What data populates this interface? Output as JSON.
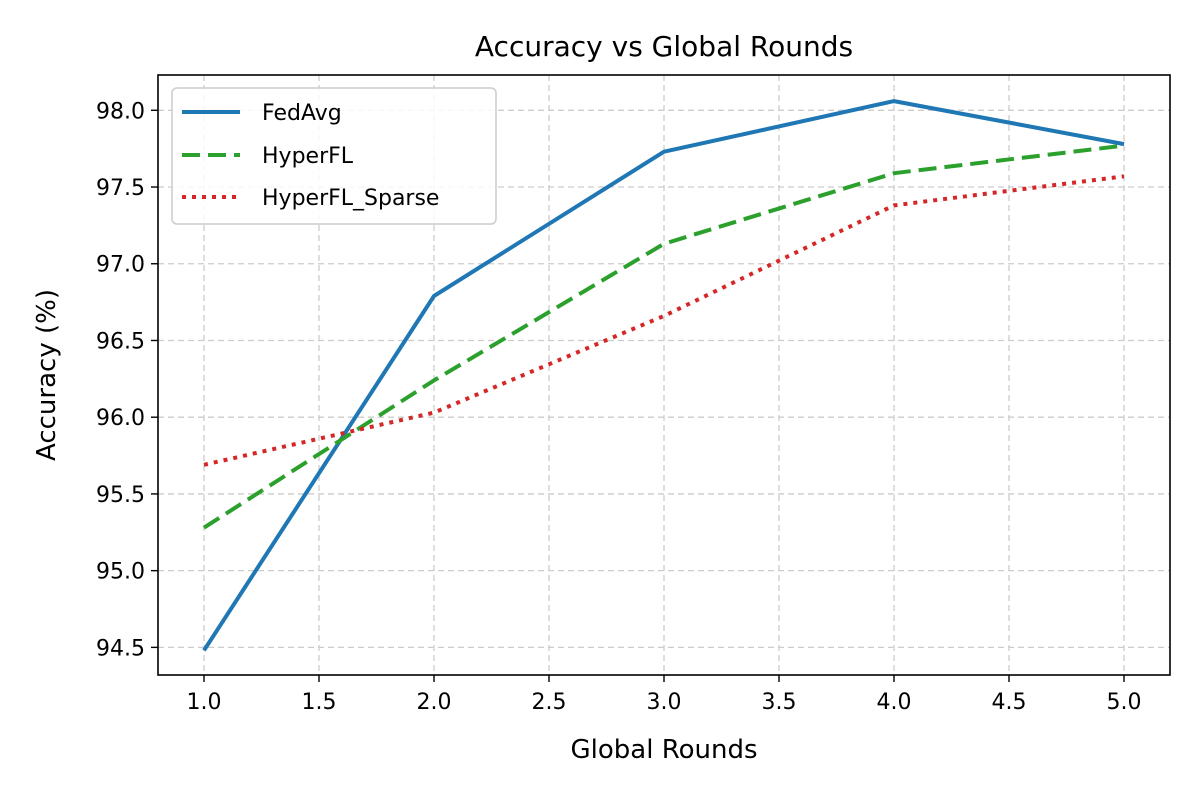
{
  "chart_data": {
    "type": "line",
    "title": "Accuracy vs Global Rounds",
    "xlabel": "Global Rounds",
    "ylabel": "Accuracy (%)",
    "x": [
      1,
      2,
      3,
      4,
      5
    ],
    "xlim": [
      0.8,
      5.2
    ],
    "ylim": [
      94.32,
      98.23
    ],
    "xticks": [
      1.0,
      1.5,
      2.0,
      2.5,
      3.0,
      3.5,
      4.0,
      4.5,
      5.0
    ],
    "xtick_labels": [
      "1.0",
      "1.5",
      "2.0",
      "2.5",
      "3.0",
      "3.5",
      "4.0",
      "4.5",
      "5.0"
    ],
    "yticks": [
      94.5,
      95.0,
      95.5,
      96.0,
      96.5,
      97.0,
      97.5,
      98.0
    ],
    "ytick_labels": [
      "94.5",
      "95.0",
      "95.5",
      "96.0",
      "96.5",
      "97.0",
      "97.5",
      "98.0"
    ],
    "grid": true,
    "legend_position": "top-left",
    "series": [
      {
        "name": "FedAvg",
        "values": [
          94.48,
          96.79,
          97.73,
          98.06,
          97.78
        ],
        "color": "#1f77b4",
        "style": "solid"
      },
      {
        "name": "HyperFL",
        "values": [
          95.28,
          96.24,
          97.13,
          97.59,
          97.77
        ],
        "color": "#2ca02c",
        "style": "dashed"
      },
      {
        "name": "HyperFL_Sparse",
        "values": [
          95.69,
          96.03,
          96.66,
          97.38,
          97.57
        ],
        "color": "#d62728",
        "style": "dotted"
      }
    ]
  }
}
